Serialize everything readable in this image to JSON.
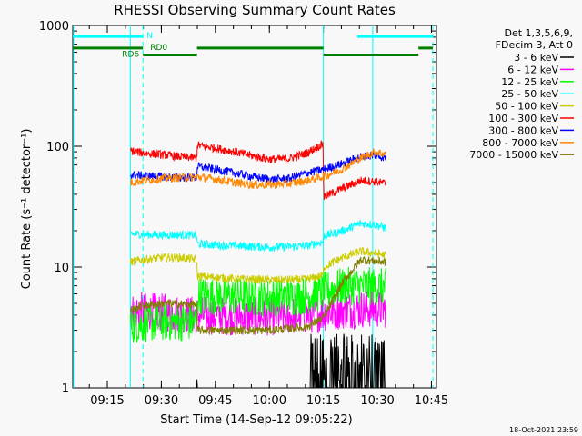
{
  "chart_data": {
    "type": "line",
    "title": "RHESSI Observing Summary Count Rates",
    "ylabel": "Count Rate (s⁻¹ detector⁻¹)",
    "xlabel": "Start Time (14-Sep-12 09:05:22)",
    "footer": "18-Oct-2021 23:59",
    "y_scale": "log",
    "ylim": [
      1,
      1000
    ],
    "xlim_minutes": [
      0,
      101
    ],
    "y_ticks": [
      "1",
      "10",
      "100",
      "1000"
    ],
    "x_ticks": [
      {
        "label": "09:15",
        "minute": 9.6
      },
      {
        "label": "09:30",
        "minute": 24.6
      },
      {
        "label": "09:45",
        "minute": 39.6
      },
      {
        "label": "10:00",
        "minute": 54.6
      },
      {
        "label": "10:15",
        "minute": 69.6
      },
      {
        "label": "10:30",
        "minute": 84.6
      },
      {
        "label": "10:45",
        "minute": 99.6
      }
    ],
    "legend_header": [
      "Det 1,3,5,6,9,",
      "FDecim 3, Att 0"
    ],
    "legend_position": "right",
    "flags": [
      {
        "label": "N",
        "color": "#00ffff",
        "level": 810,
        "segments": [
          [
            0,
            19.5
          ],
          [
            79,
            100
          ]
        ]
      },
      {
        "label": "RD0",
        "color": "#008000",
        "level": 650,
        "segments": [
          [
            0,
            19.5
          ],
          [
            34.5,
            69.6
          ],
          [
            96,
            100
          ]
        ]
      },
      {
        "label": "RD6",
        "color": "#008000",
        "level": 570,
        "segments": [
          [
            19.5,
            34.5
          ],
          [
            69.6,
            96
          ]
        ]
      }
    ],
    "flag_labels": {
      "N": "N",
      "RD0": "RD0",
      "RD6": "RD6"
    },
    "vlines": [
      {
        "minute": 0.2,
        "style": "solid",
        "color": "#00ffff"
      },
      {
        "minute": 16,
        "style": "solid",
        "color": "#00ffff"
      },
      {
        "minute": 19.5,
        "style": "dashed",
        "color": "#00ffff"
      },
      {
        "minute": 69.6,
        "style": "solid",
        "color": "#00ffff"
      },
      {
        "minute": 83.3,
        "style": "solid",
        "color": "#00ffff"
      },
      {
        "minute": 100,
        "style": "dashed",
        "color": "#00ffff"
      }
    ],
    "data_range_minutes": [
      16,
      87
    ],
    "series": [
      {
        "name": "3 - 6 keV",
        "color": "#000000",
        "x": [
          16,
          34.4,
          34.6,
          49,
          56,
          62,
          66,
          69,
          72,
          76,
          80,
          84,
          87
        ],
        "y": [
          1,
          1,
          1.5,
          1.5,
          1.6,
          1.7,
          1.9,
          2.1,
          2.5,
          2.7,
          2.4,
          2.0,
          1.8
        ]
      },
      {
        "name": "6 - 12 keV",
        "color": "#ff00ff",
        "x": [
          16,
          19.5,
          25,
          30,
          34.4,
          34.6,
          45,
          55,
          65,
          69.6,
          75,
          80,
          87
        ],
        "y": [
          4.2,
          4.3,
          4.2,
          4.1,
          4.0,
          4.0,
          3.9,
          3.9,
          4.0,
          4.2,
          4.4,
          4.5,
          4.5
        ]
      },
      {
        "name": "12 - 25 keV",
        "color": "#00ff00",
        "x": [
          16,
          19.5,
          25,
          34.4,
          34.6,
          45,
          55,
          65,
          69.6,
          75,
          80,
          87
        ],
        "y": [
          3.3,
          3.4,
          3.5,
          3.5,
          5.8,
          5.7,
          5.6,
          5.8,
          6.3,
          6.9,
          7.0,
          6.8
        ]
      },
      {
        "name": "25 - 50 keV",
        "color": "#00ffff",
        "x": [
          16,
          19.5,
          25,
          30,
          34.4,
          34.6,
          45,
          55,
          65,
          69.5,
          69.7,
          75,
          80,
          84,
          87
        ],
        "y": [
          19,
          18.6,
          18.4,
          18.5,
          18.3,
          15.5,
          15.0,
          14.6,
          15.0,
          16.2,
          18,
          20,
          23,
          22.5,
          21
        ]
      },
      {
        "name": "50 - 100 keV",
        "color": "#cccc00",
        "x": [
          16,
          19.5,
          25,
          30,
          34.4,
          34.6,
          45,
          55,
          65,
          69.5,
          69.7,
          75,
          80,
          84,
          87
        ],
        "y": [
          11,
          11.5,
          12,
          12,
          11.5,
          8.4,
          8.0,
          7.8,
          7.9,
          8.5,
          10,
          12,
          13.5,
          13,
          12.5
        ]
      },
      {
        "name": "100 - 300 keV",
        "color": "#ff0000",
        "x": [
          16,
          19.5,
          25,
          30,
          34.4,
          34.6,
          40,
          45,
          50,
          55,
          60,
          65,
          69.5,
          69.7,
          75,
          80,
          84,
          87
        ],
        "y": [
          92,
          88,
          85,
          82,
          80,
          102,
          96,
          90,
          83,
          78,
          79,
          88,
          105,
          38,
          45,
          52,
          51,
          49
        ]
      },
      {
        "name": "300 - 800 keV",
        "color": "#0000ff",
        "x": [
          16,
          19.5,
          25,
          30,
          34.4,
          34.6,
          40,
          45,
          50,
          55,
          60,
          65,
          69.6,
          75,
          80,
          84,
          87
        ],
        "y": [
          58,
          57,
          56,
          55,
          55,
          68,
          64,
          60,
          56,
          53,
          54,
          60,
          64,
          72,
          82,
          84,
          80
        ]
      },
      {
        "name": "800 - 7000 keV",
        "color": "#ff8800",
        "x": [
          16,
          19.5,
          25,
          30,
          34.4,
          34.6,
          40,
          45,
          50,
          55,
          60,
          65,
          69.6,
          75,
          80,
          84,
          87
        ],
        "y": [
          50,
          52,
          54,
          55,
          55,
          56,
          53,
          50,
          48,
          48,
          49,
          52,
          56,
          65,
          80,
          90,
          86
        ]
      },
      {
        "name": "7000 - 15000 keV",
        "color": "#808000",
        "x": [
          16,
          19.5,
          25,
          34.4,
          34.6,
          45,
          55,
          65,
          69.6,
          75,
          80,
          87
        ],
        "y": [
          4.4,
          4.8,
          5.0,
          4.9,
          3.0,
          3.0,
          3.0,
          3.2,
          3.8,
          7.5,
          11.5,
          11
        ]
      }
    ]
  }
}
